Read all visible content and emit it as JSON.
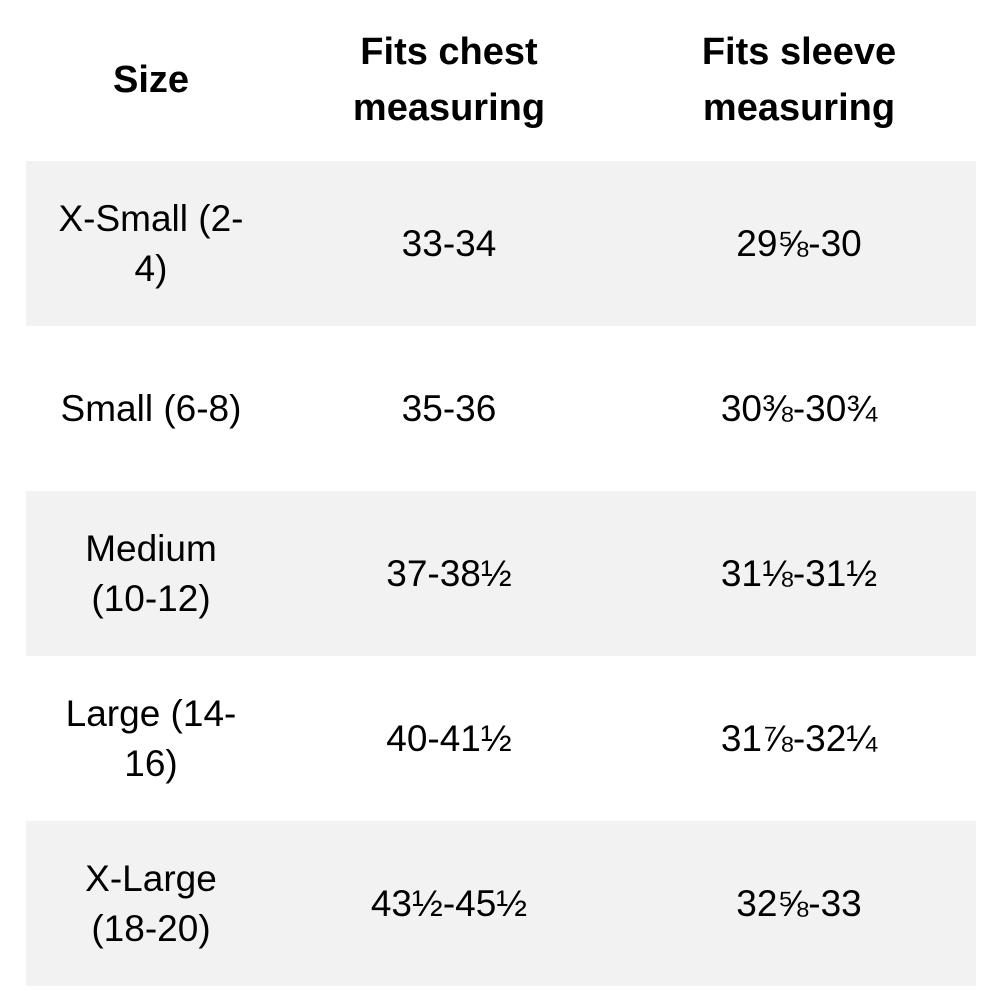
{
  "table": {
    "headers": {
      "size": "Size",
      "chest": "Fits chest measuring",
      "sleeve": "Fits sleeve measuring"
    },
    "rows": [
      {
        "size": "X-Small (2-4)",
        "chest": "33-34",
        "sleeve": "29⅝-30"
      },
      {
        "size": "Small (6-8)",
        "chest": "35-36",
        "sleeve": "30⅜-30¾"
      },
      {
        "size": "Medium (10-12)",
        "chest": "37-38½",
        "sleeve": "31⅛-31½"
      },
      {
        "size": "Large (14-16)",
        "chest": "40-41½",
        "sleeve": "31⅞-32¼"
      },
      {
        "size": "X-Large (18-20)",
        "chest": "43½-45½",
        "sleeve": "32⅝-33"
      }
    ],
    "colors": {
      "shaded_row": "#f2f2f2",
      "text": "#000000"
    }
  }
}
